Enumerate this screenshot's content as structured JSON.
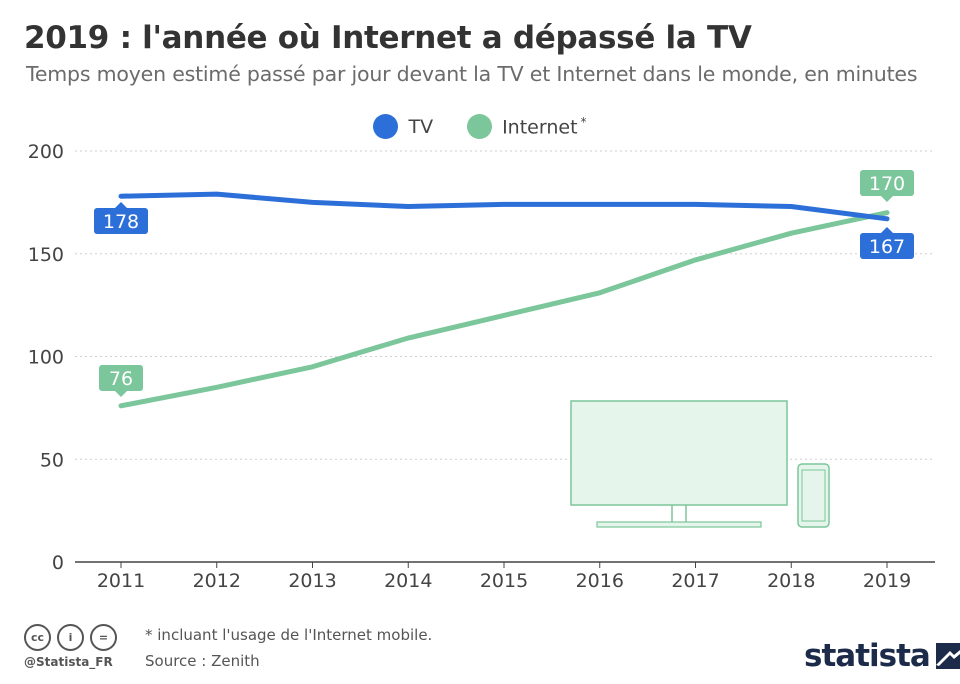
{
  "header": {
    "title": "2019 : l'année où Internet a dépassé la TV",
    "subtitle": "Temps moyen estimé passé par jour devant la TV et Internet dans le monde, en minutes"
  },
  "legend": {
    "tv_label": "TV",
    "internet_label": "Internet",
    "internet_note": "*"
  },
  "colors": {
    "tv": "#2d6fd8",
    "internet": "#7bc69a",
    "grid": "#cfcfcf",
    "illustration": "#7bc69a",
    "illustration_fill": "#e6f5eb"
  },
  "chart_data": {
    "type": "line",
    "x": [
      2011,
      2012,
      2013,
      2014,
      2015,
      2016,
      2017,
      2018,
      2019
    ],
    "series": [
      {
        "name": "TV",
        "values": [
          178,
          179,
          175,
          173,
          174,
          174,
          174,
          173,
          167
        ]
      },
      {
        "name": "Internet",
        "values": [
          76,
          85,
          95,
          109,
          120,
          131,
          147,
          160,
          170
        ]
      }
    ],
    "data_labels": [
      {
        "series": "TV",
        "x": 2011,
        "text": "178"
      },
      {
        "series": "TV",
        "x": 2019,
        "text": "167"
      },
      {
        "series": "Internet",
        "x": 2011,
        "text": "76"
      },
      {
        "series": "Internet",
        "x": 2019,
        "text": "170"
      }
    ],
    "yticks": [
      0,
      50,
      100,
      150,
      200
    ],
    "ylim": [
      0,
      200
    ],
    "grid": true,
    "legend_position": "top-center",
    "title": "2019 : l'année où Internet a dépassé la TV",
    "xlabel": "",
    "ylabel": ""
  },
  "footer": {
    "note": "* incluant l'usage de l'Internet mobile.",
    "source": "Source : Zenith",
    "handle": "@Statista_FR",
    "brand": "statista",
    "license_icons": [
      "cc",
      "i",
      "="
    ]
  }
}
